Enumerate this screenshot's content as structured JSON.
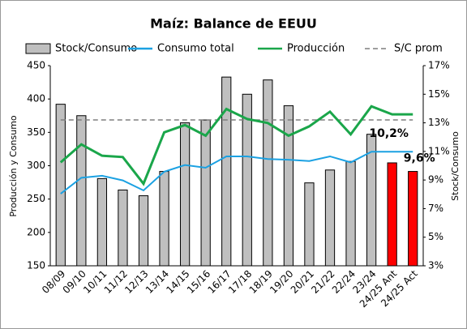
{
  "chart_data": {
    "type": "bar_line",
    "title": "Maíz: Balance de EEUU",
    "y_label": "Producción y Consumo",
    "y2_label": "Stock/Consumo",
    "categories": [
      "08/09",
      "09/10",
      "10/11",
      "11/12",
      "12/13",
      "13/14",
      "14/15",
      "15/16",
      "16/17",
      "17/18",
      "18/19",
      "19/20",
      "20/21",
      "21/22",
      "22/24",
      "23/24",
      "24/25 Ant",
      "24/25 Act"
    ],
    "series": [
      {
        "name": "Stock/Consumo",
        "kind": "bar",
        "axis": "y2",
        "color": "#bfbfbf",
        "colors": [
          "#bfbfbf",
          "#bfbfbf",
          "#bfbfbf",
          "#bfbfbf",
          "#bfbfbf",
          "#bfbfbf",
          "#bfbfbf",
          "#bfbfbf",
          "#bfbfbf",
          "#bfbfbf",
          "#bfbfbf",
          "#bfbfbf",
          "#bfbfbf",
          "#bfbfbf",
          "#bfbfbf",
          "#bfbfbf",
          "#ff0000",
          "#ff0000"
        ],
        "values": [
          14.3,
          13.5,
          9.1,
          8.3,
          7.9,
          9.6,
          13.0,
          13.2,
          16.2,
          15.0,
          16.0,
          14.2,
          8.8,
          9.7,
          10.3,
          12.2,
          10.2,
          9.6
        ],
        "value_labels": [
          null,
          null,
          null,
          null,
          null,
          null,
          null,
          null,
          null,
          null,
          null,
          null,
          null,
          null,
          null,
          null,
          "10,2%",
          "9,6%"
        ]
      },
      {
        "name": "Consumo total",
        "kind": "line",
        "axis": "y",
        "color": "#1ba1e2",
        "values": [
          258,
          282,
          285,
          278,
          263,
          291,
          301,
          297,
          314,
          314,
          310,
          309,
          307,
          314,
          305,
          321,
          321,
          321
        ]
      },
      {
        "name": "Producción",
        "kind": "line",
        "axis": "y",
        "color": "#1aa64a",
        "values": [
          305,
          332,
          315,
          313,
          273,
          350,
          361,
          345,
          385,
          370,
          364,
          345,
          359,
          381,
          347,
          389,
          377,
          377
        ]
      }
    ],
    "ref_lines": [
      {
        "name": "S/C prom",
        "value": 13.2,
        "axis": "y2",
        "color": "#7f7f7f"
      }
    ],
    "ylim": [
      150,
      450
    ],
    "yticks": [
      150,
      200,
      250,
      300,
      350,
      400,
      450
    ],
    "y2lim": [
      3,
      17
    ],
    "y2ticks": [
      {
        "value": 3,
        "label": "3%"
      },
      {
        "value": 5,
        "label": "5%"
      },
      {
        "value": 7,
        "label": "7%"
      },
      {
        "value": 9,
        "label": "9%"
      },
      {
        "value": 11,
        "label": "11%"
      },
      {
        "value": 13,
        "label": "13%"
      },
      {
        "value": 15,
        "label": "15%"
      },
      {
        "value": 17,
        "label": "17%"
      }
    ],
    "legend": "top"
  }
}
